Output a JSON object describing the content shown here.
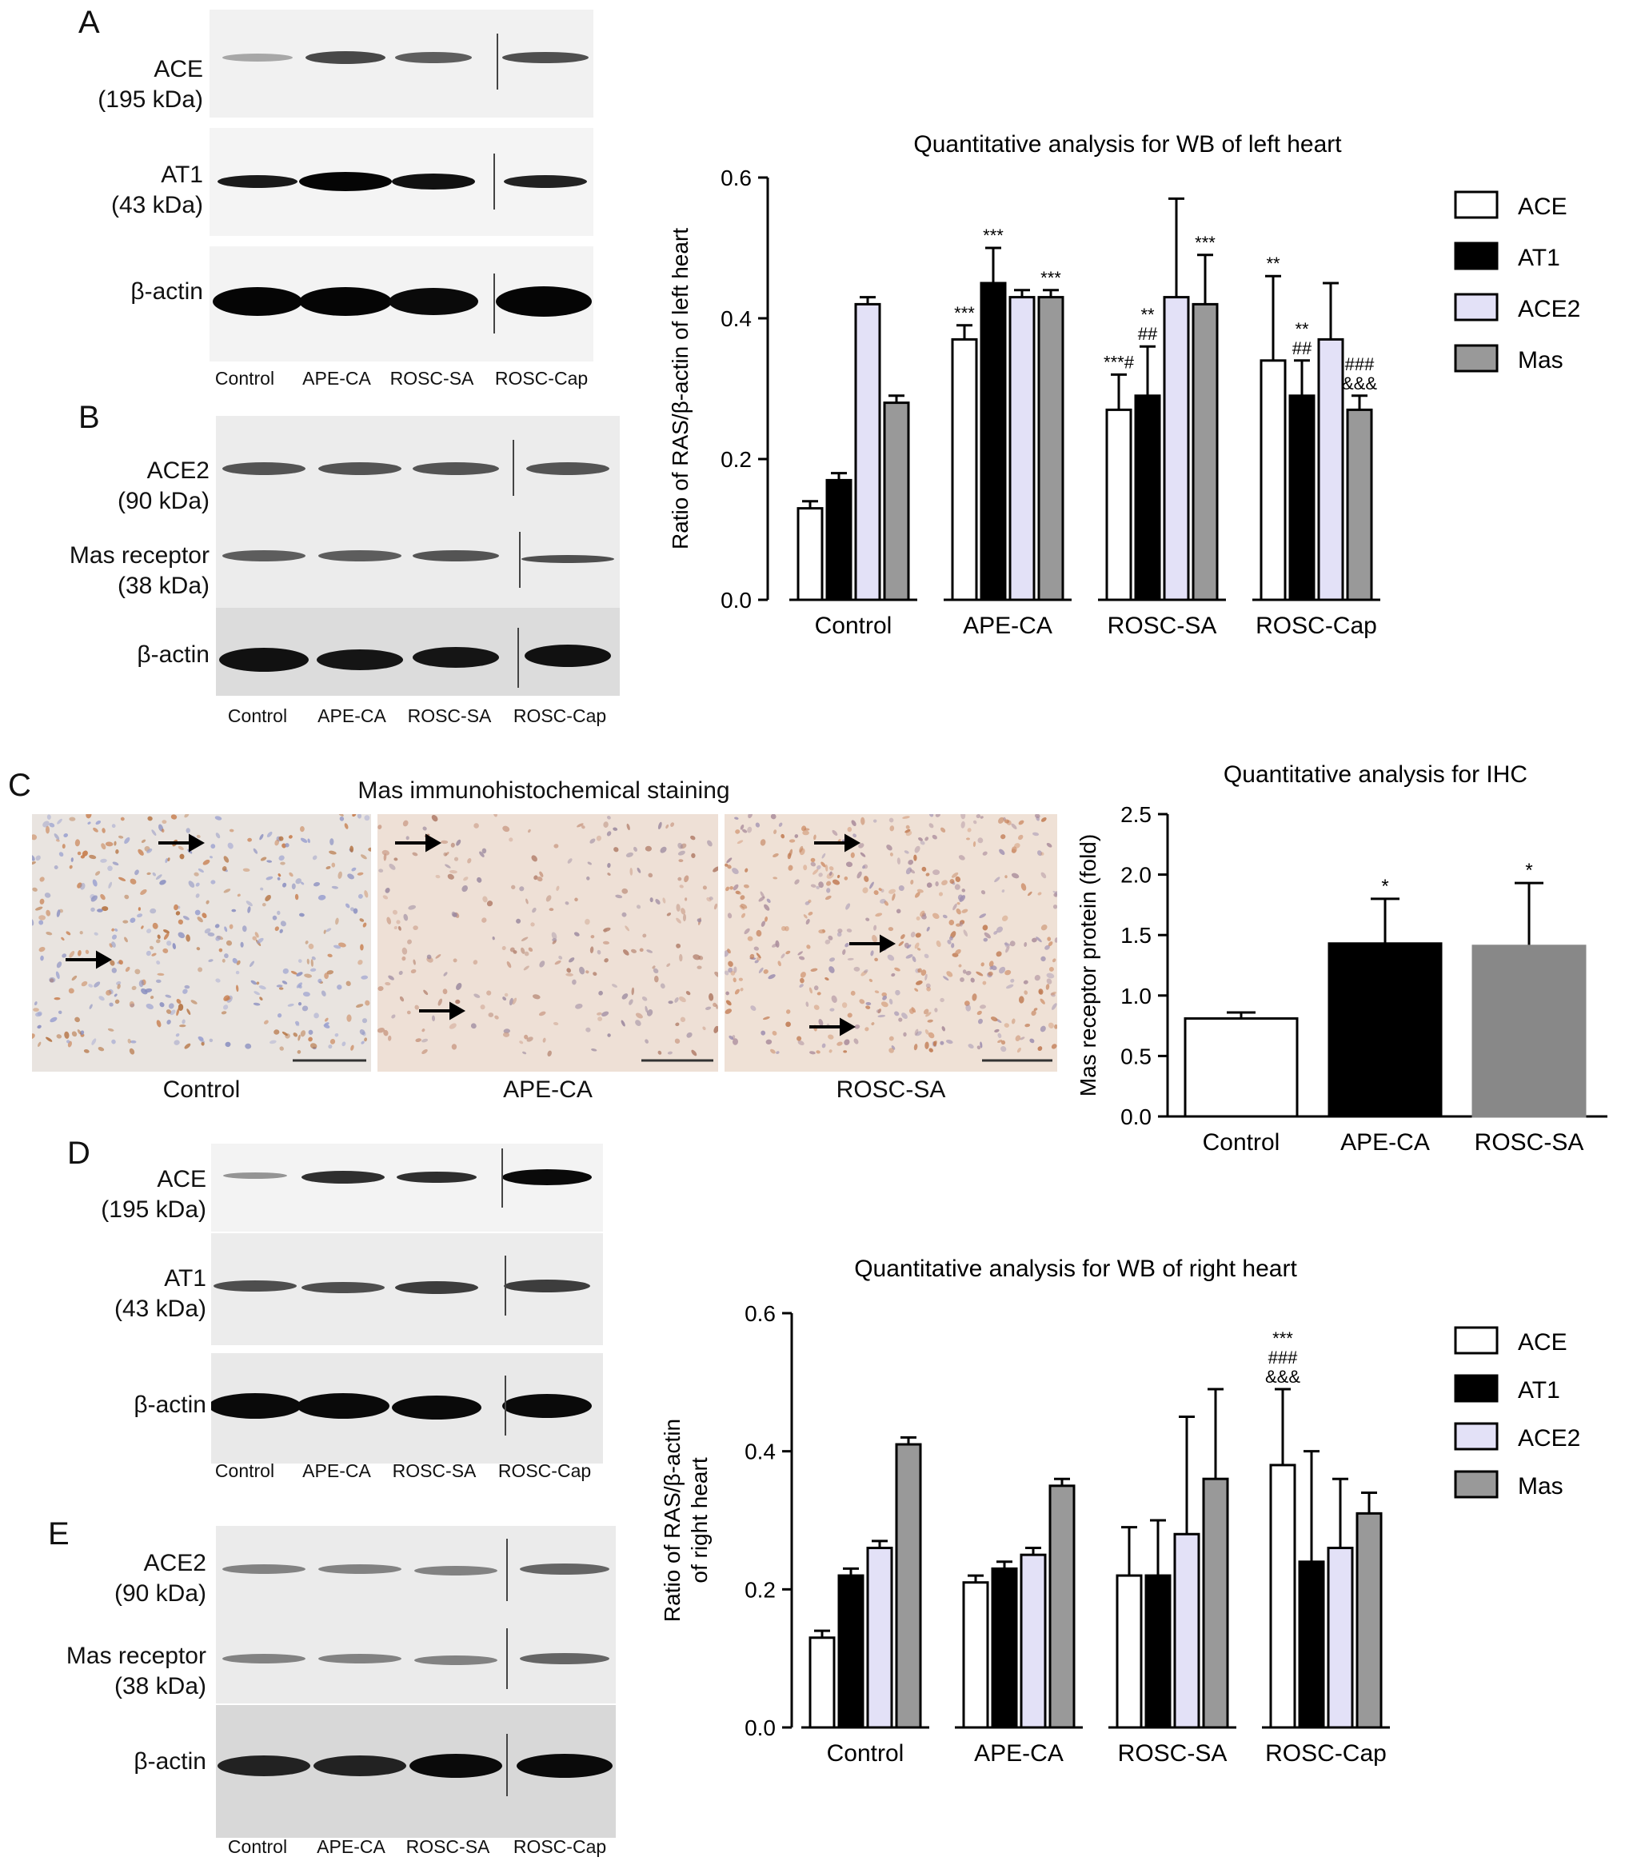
{
  "panels": {
    "a": {
      "letter": "A",
      "rows": [
        {
          "name": "ACE",
          "size": "(195 kDa)"
        },
        {
          "name": "AT1",
          "size": "(43 kDa)"
        },
        {
          "name": "β-actin",
          "size": ""
        }
      ],
      "lanes": [
        "Control",
        "APE-CA",
        "ROSC-SA",
        "ROSC-Cap"
      ]
    },
    "b": {
      "letter": "B",
      "rows": [
        {
          "name": "ACE2",
          "size": "(90 kDa)"
        },
        {
          "name": "Mas receptor",
          "size": "(38 kDa)"
        },
        {
          "name": "β-actin",
          "size": ""
        }
      ],
      "lanes": [
        "Control",
        "APE-CA",
        "ROSC-SA",
        "ROSC-Cap"
      ]
    },
    "c": {
      "letter": "C",
      "title": "Mas immunohistochemical staining",
      "images": [
        "Control",
        "APE-CA",
        "ROSC-SA"
      ]
    },
    "d": {
      "letter": "D",
      "rows": [
        {
          "name": "ACE",
          "size": "(195 kDa)"
        },
        {
          "name": "AT1",
          "size": "(43 kDa)"
        },
        {
          "name": "β-actin",
          "size": ""
        }
      ],
      "lanes": [
        "Control",
        "APE-CA",
        "ROSC-SA",
        "ROSC-Cap"
      ]
    },
    "e": {
      "letter": "E",
      "rows": [
        {
          "name": "ACE2",
          "size": "(90 kDa)"
        },
        {
          "name": "Mas receptor",
          "size": "(38 kDa)"
        },
        {
          "name": "β-actin",
          "size": ""
        }
      ],
      "lanes": [
        "Control",
        "APE-CA",
        "ROSC-SA",
        "ROSC-Cap"
      ]
    }
  },
  "chart_data": [
    {
      "id": "left",
      "type": "bar",
      "title": "Quantitative analysis for WB of left heart",
      "xlabel": "",
      "ylabel": "Ratio of RAS/β-actin of left heart",
      "ylim": [
        0,
        0.6
      ],
      "yticks": [
        "0.0",
        "0.2",
        "0.4",
        "0.6"
      ],
      "categories": [
        "Control",
        "APE-CA",
        "ROSC-SA",
        "ROSC-Cap"
      ],
      "series": [
        {
          "name": "ACE",
          "color": "#ffffff",
          "values": [
            0.13,
            0.37,
            0.27,
            0.34
          ],
          "errors": [
            0.01,
            0.02,
            0.05,
            0.12
          ]
        },
        {
          "name": "AT1",
          "color": "#000000",
          "values": [
            0.17,
            0.45,
            0.29,
            0.29
          ],
          "errors": [
            0.01,
            0.05,
            0.07,
            0.05
          ]
        },
        {
          "name": "ACE2",
          "color": "#e3e1f7",
          "values": [
            0.42,
            0.43,
            0.43,
            0.37
          ],
          "errors": [
            0.01,
            0.01,
            0.14,
            0.08
          ]
        },
        {
          "name": "Mas",
          "color": "#999999",
          "values": [
            0.28,
            0.43,
            0.42,
            0.27
          ],
          "errors": [
            0.01,
            0.01,
            0.07,
            0.02
          ]
        }
      ],
      "annotations": [
        {
          "group": 1,
          "series": 0,
          "lines": [
            "***"
          ]
        },
        {
          "group": 1,
          "series": 1,
          "lines": [
            "***"
          ]
        },
        {
          "group": 1,
          "series": 3,
          "lines": [
            "***"
          ]
        },
        {
          "group": 2,
          "series": 0,
          "lines": [
            "***#"
          ]
        },
        {
          "group": 2,
          "series": 1,
          "lines": [
            "**",
            "##"
          ]
        },
        {
          "group": 2,
          "series": 3,
          "lines": [
            "***"
          ]
        },
        {
          "group": 3,
          "series": 0,
          "lines": [
            "**"
          ]
        },
        {
          "group": 3,
          "series": 1,
          "lines": [
            "**",
            "##"
          ]
        },
        {
          "group": 3,
          "series": 3,
          "lines": [
            "###",
            "&&&"
          ]
        }
      ],
      "legend_position": "right"
    },
    {
      "id": "ihc",
      "type": "bar",
      "title": "Quantitative analysis for IHC",
      "xlabel": "",
      "ylabel": "Mas receptor protein (fold)",
      "ylim": [
        0,
        2.5
      ],
      "yticks": [
        "0.0",
        "0.5",
        "1.0",
        "1.5",
        "2.0",
        "2.5"
      ],
      "categories": [
        "Control",
        "APE-CA",
        "ROSC-SA"
      ],
      "values": [
        0.81,
        1.43,
        1.41
      ],
      "errors": [
        0.05,
        0.37,
        0.52
      ],
      "colors": [
        "#ffffff",
        "#000000",
        "#888888"
      ],
      "annotations": [
        "",
        "*",
        "*"
      ]
    },
    {
      "id": "right",
      "type": "bar",
      "title": "Quantitative analysis for WB of right heart",
      "xlabel": "",
      "ylabel": "Ratio of RAS/β-actin of right heart",
      "ylabel_lines": [
        "Ratio of RAS/β-actin",
        "of right heart"
      ],
      "ylim": [
        0,
        0.6
      ],
      "yticks": [
        "0.0",
        "0.2",
        "0.4",
        "0.6"
      ],
      "categories": [
        "Control",
        "APE-CA",
        "ROSC-SA",
        "ROSC-Cap"
      ],
      "series": [
        {
          "name": "ACE",
          "color": "#ffffff",
          "values": [
            0.13,
            0.21,
            0.22,
            0.38
          ],
          "errors": [
            0.01,
            0.01,
            0.07,
            0.11
          ]
        },
        {
          "name": "AT1",
          "color": "#000000",
          "values": [
            0.22,
            0.23,
            0.22,
            0.24
          ],
          "errors": [
            0.01,
            0.01,
            0.08,
            0.16
          ]
        },
        {
          "name": "ACE2",
          "color": "#e3e1f7",
          "values": [
            0.26,
            0.25,
            0.28,
            0.26
          ],
          "errors": [
            0.01,
            0.01,
            0.17,
            0.1
          ]
        },
        {
          "name": "Mas",
          "color": "#999999",
          "values": [
            0.41,
            0.35,
            0.36,
            0.31
          ],
          "errors": [
            0.01,
            0.01,
            0.13,
            0.03
          ]
        }
      ],
      "annotations": [
        {
          "group": 3,
          "series": 0,
          "lines": [
            "***",
            "###",
            "&&&"
          ]
        }
      ],
      "legend_position": "right"
    }
  ]
}
